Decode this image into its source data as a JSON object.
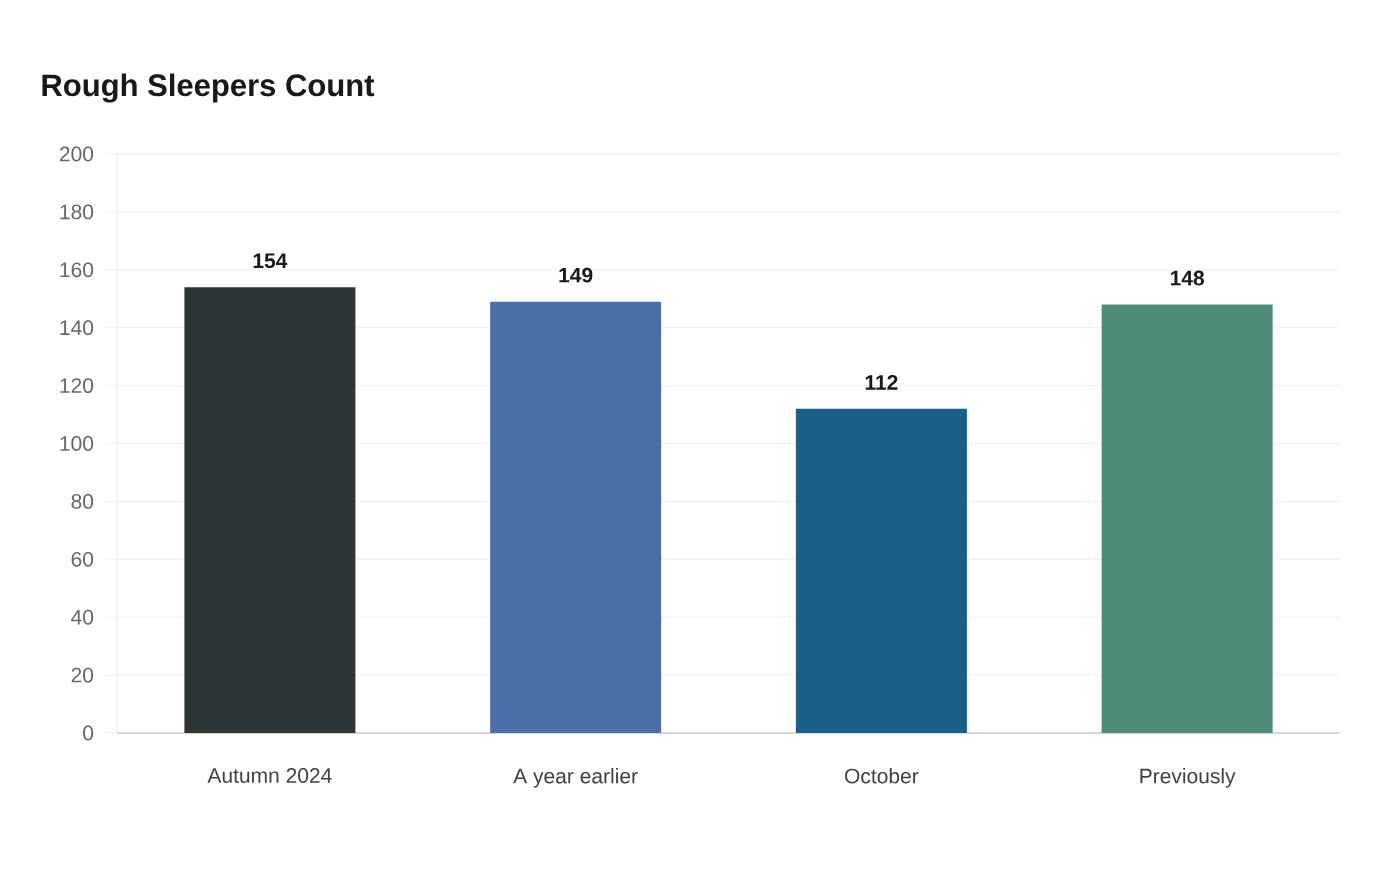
{
  "chart_data": {
    "type": "bar",
    "title": "Rough Sleepers Count",
    "categories": [
      "Autumn 2024",
      "A year earlier",
      "October",
      "Previously"
    ],
    "values": [
      154,
      149,
      112,
      148
    ],
    "colors": [
      "#2e3536",
      "#4a6fa5",
      "#186088",
      "#4e8c78"
    ],
    "ylim": [
      0,
      200
    ],
    "yticks": [
      0,
      20,
      40,
      60,
      80,
      100,
      120,
      140,
      160,
      180,
      200
    ],
    "grid": "y",
    "data_labels": true
  }
}
